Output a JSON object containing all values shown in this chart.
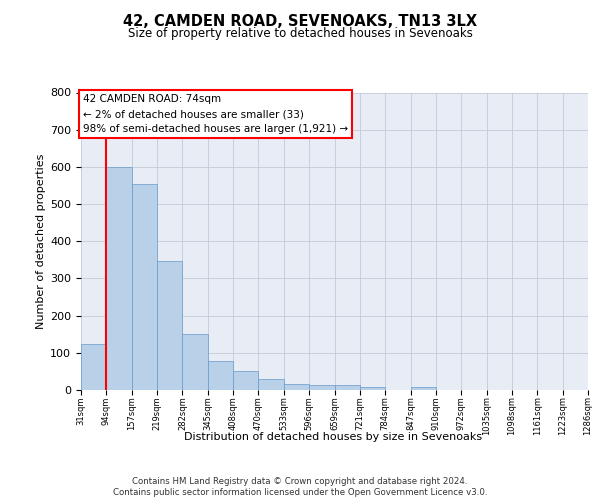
{
  "title": "42, CAMDEN ROAD, SEVENOAKS, TN13 3LX",
  "subtitle": "Size of property relative to detached houses in Sevenoaks",
  "xlabel": "Distribution of detached houses by size in Sevenoaks",
  "ylabel": "Number of detached properties",
  "bar_values": [
    125,
    600,
    555,
    348,
    150,
    77,
    52,
    30,
    15,
    13,
    13,
    7,
    0,
    8,
    0,
    0,
    0,
    0,
    0,
    0
  ],
  "bin_labels": [
    "31sqm",
    "94sqm",
    "157sqm",
    "219sqm",
    "282sqm",
    "345sqm",
    "408sqm",
    "470sqm",
    "533sqm",
    "596sqm",
    "659sqm",
    "721sqm",
    "784sqm",
    "847sqm",
    "910sqm",
    "972sqm",
    "1035sqm",
    "1098sqm",
    "1161sqm",
    "1223sqm",
    "1286sqm"
  ],
  "bar_color": "#b8d0e8",
  "bar_edge_color": "#6699cc",
  "annotation_text": "42 CAMDEN ROAD: 74sqm\n← 2% of detached houses are smaller (33)\n98% of semi-detached houses are larger (1,921) →",
  "annotation_box_color": "white",
  "annotation_box_edge": "red",
  "vline_color": "red",
  "grid_color": "#c5cad8",
  "bg_color": "#e8edf5",
  "ylim": [
    0,
    800
  ],
  "yticks": [
    0,
    100,
    200,
    300,
    400,
    500,
    600,
    700,
    800
  ],
  "footer": "Contains HM Land Registry data © Crown copyright and database right 2024.\nContains public sector information licensed under the Open Government Licence v3.0."
}
